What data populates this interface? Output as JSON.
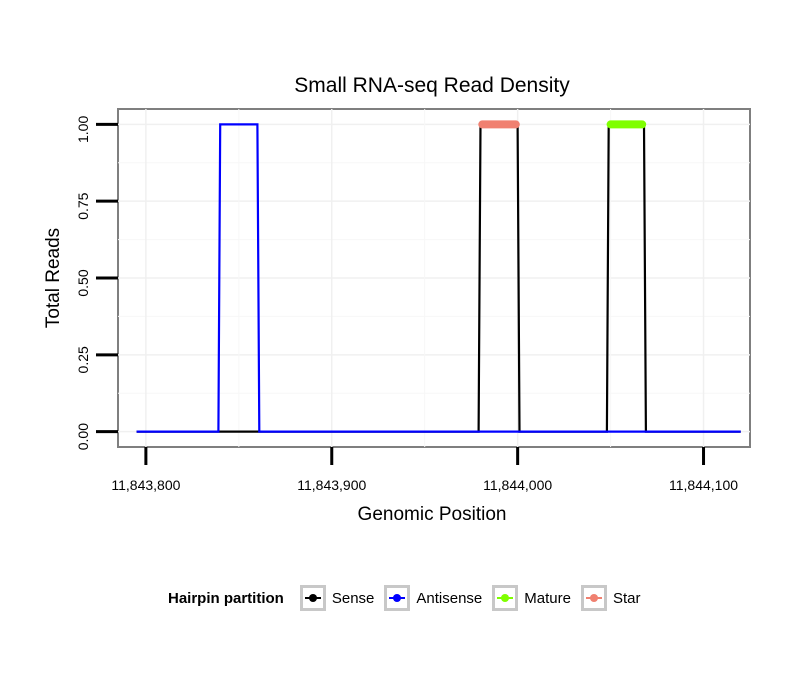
{
  "chart_data": {
    "type": "line",
    "title": "Small RNA-seq Read Density",
    "xlabel": "Genomic Position",
    "ylabel": "Total Reads",
    "xlim": [
      11843785,
      11844125
    ],
    "ylim": [
      -0.05,
      1.05
    ],
    "x_ticks": [
      11843800,
      11843900,
      11844000,
      11844100
    ],
    "x_tick_labels": [
      "11,843,800",
      "11,843,900",
      "11,844,000",
      "11,844,100"
    ],
    "y_ticks": [
      0,
      0.25,
      0.5,
      0.75,
      1.0
    ],
    "y_tick_labels": [
      "0.00",
      "0.25",
      "0.50",
      "0.75",
      "1.00"
    ],
    "grid": true,
    "legend_position": "bottom",
    "series": [
      {
        "name": "Sense",
        "color": "#000000",
        "x": [
          11843795,
          11843979,
          11843980,
          11844000,
          11844001,
          11844048,
          11844049,
          11844068,
          11844069,
          11844120
        ],
        "y": [
          0,
          0,
          1,
          1,
          0,
          0,
          1,
          1,
          0,
          0
        ]
      },
      {
        "name": "Antisense",
        "color": "#0000ff",
        "x": [
          11843795,
          11843839,
          11843840,
          11843860,
          11843861,
          11844120
        ],
        "y": [
          0,
          0,
          1,
          1,
          0,
          0
        ]
      },
      {
        "name": "Mature",
        "color": "#7fff00",
        "x": [
          11844050,
          11844067
        ],
        "y": [
          1,
          1
        ]
      },
      {
        "name": "Star",
        "color": "#f08070",
        "x": [
          11843981,
          11843999
        ],
        "y": [
          1,
          1
        ]
      }
    ]
  },
  "legend": {
    "title": "Hairpin partition",
    "items": [
      {
        "label": "Sense",
        "color": "#000000"
      },
      {
        "label": "Antisense",
        "color": "#0000ff"
      },
      {
        "label": "Mature",
        "color": "#7fff00"
      },
      {
        "label": "Star",
        "color": "#f08070"
      }
    ]
  }
}
